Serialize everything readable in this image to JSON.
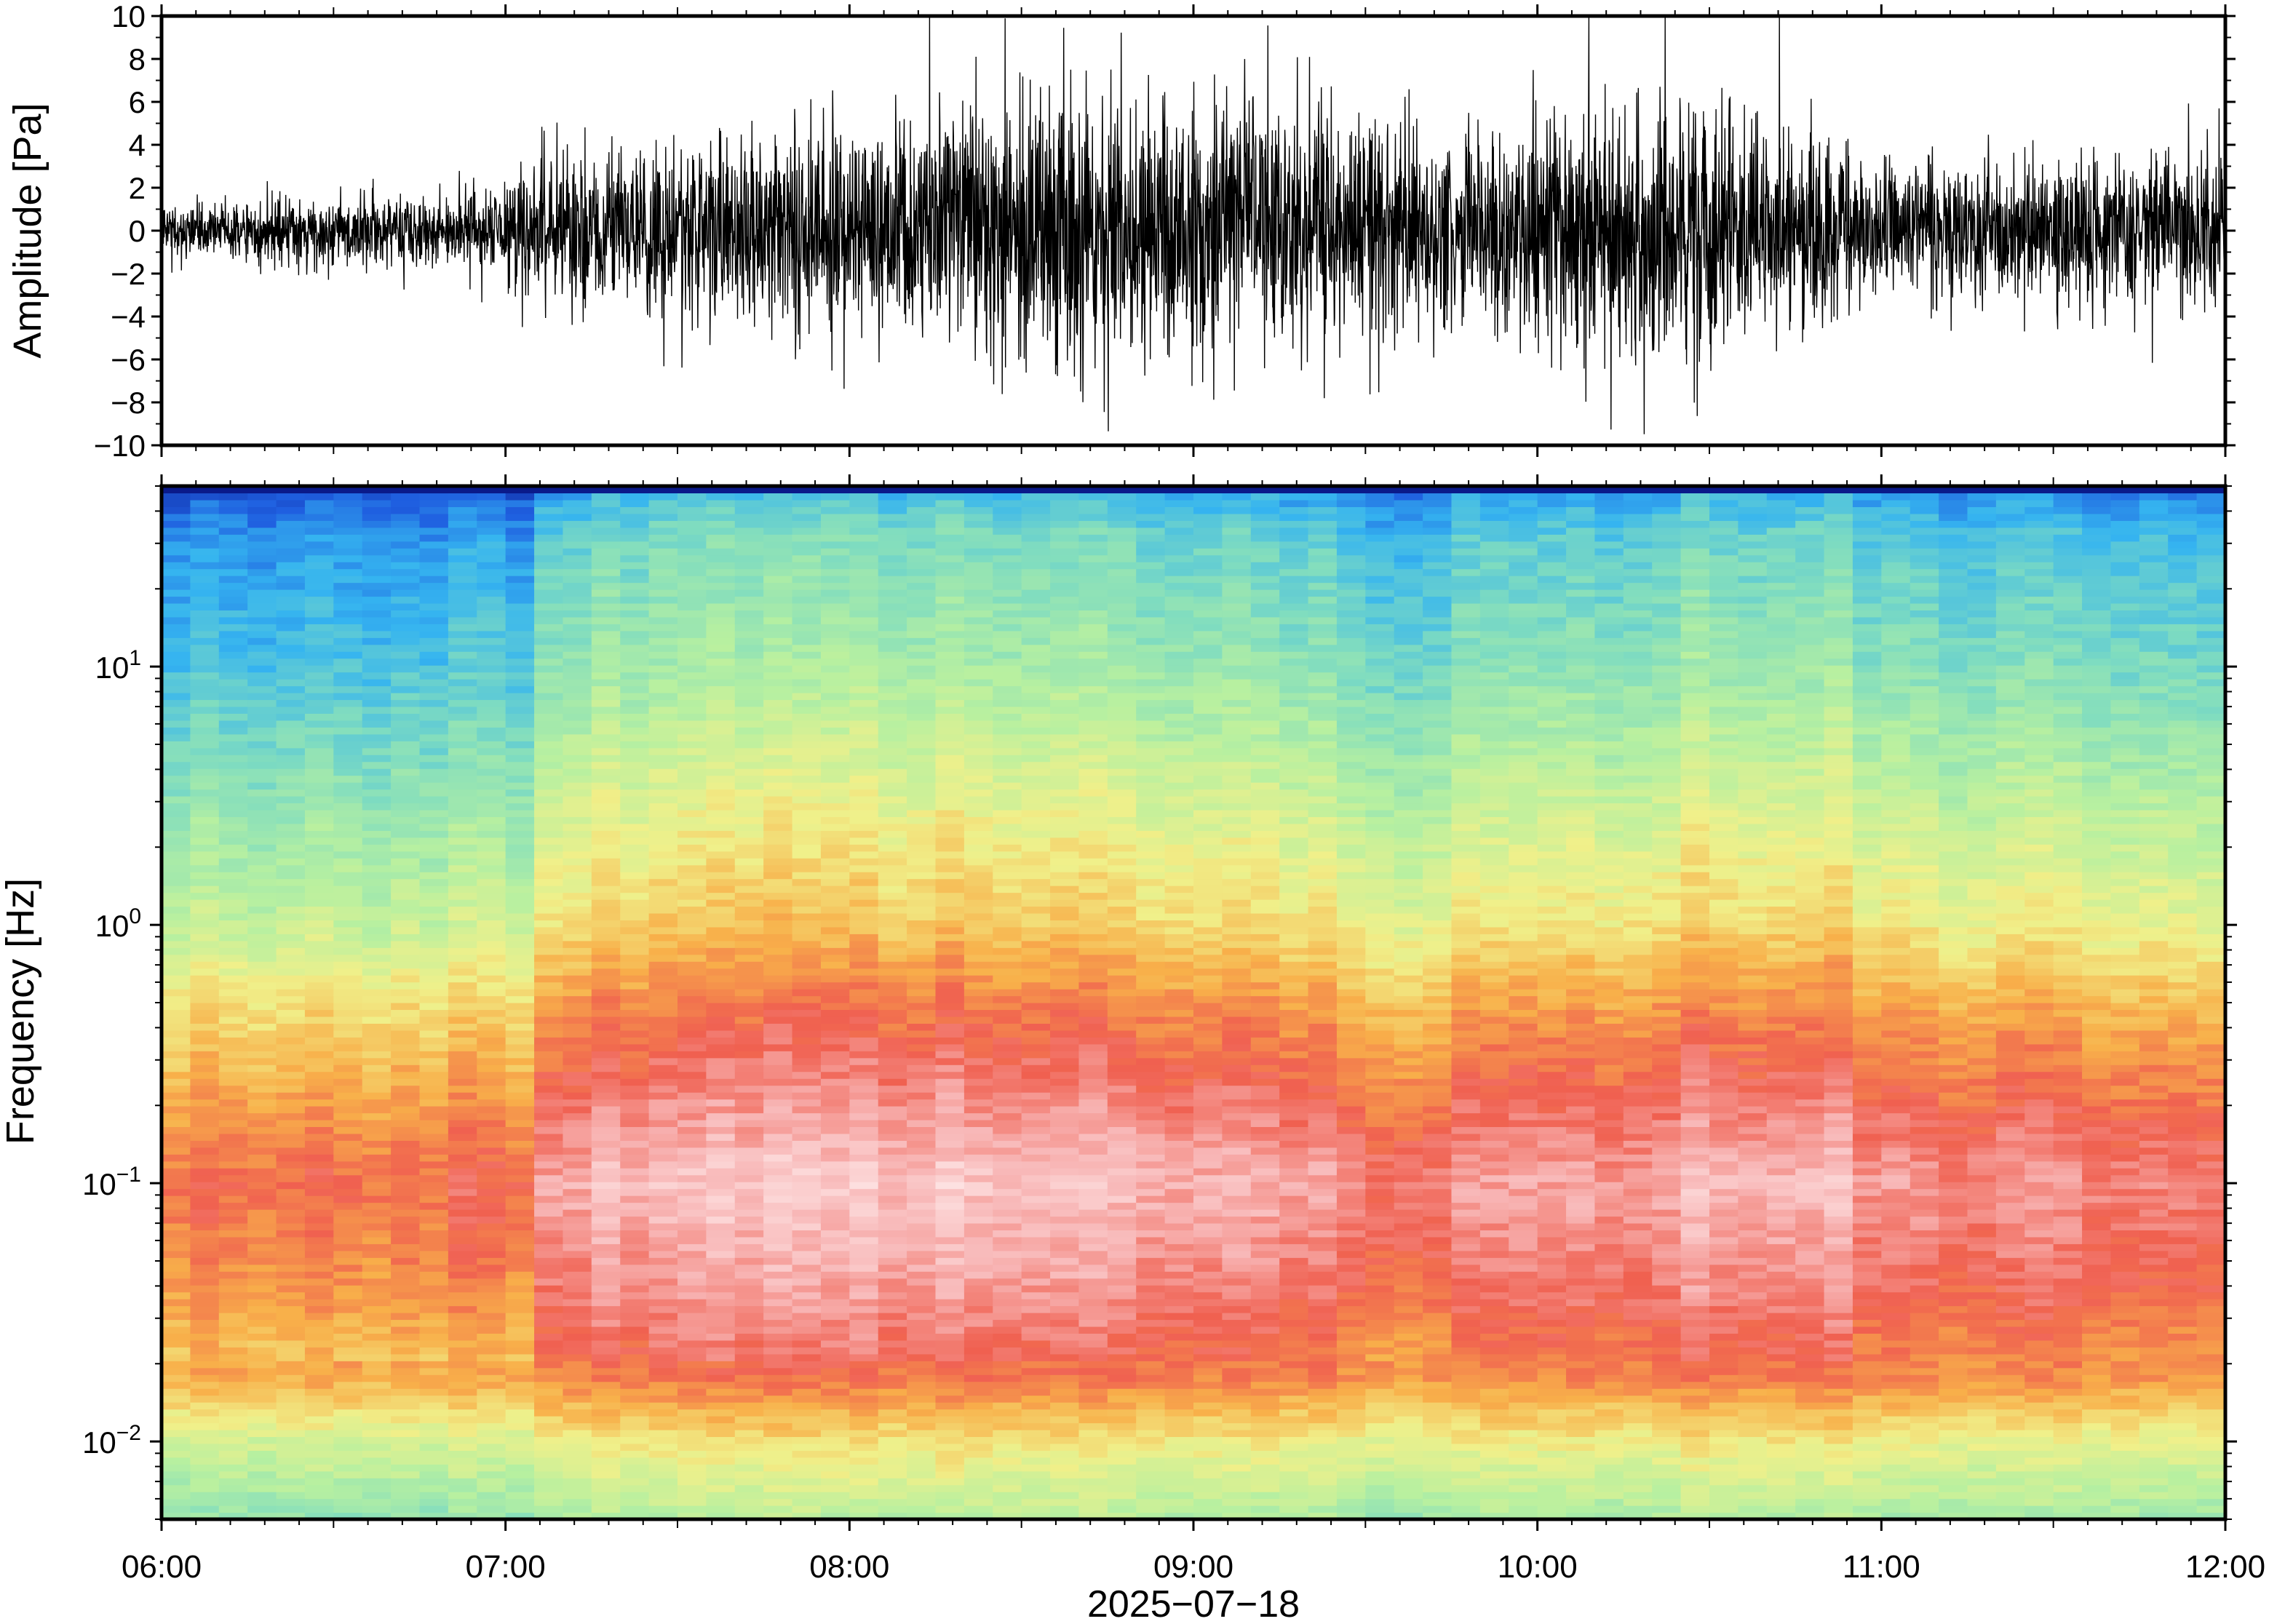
{
  "chart_data": [
    {
      "type": "line",
      "panel": "waveform",
      "ylabel": "Amplitude [Pa]",
      "ylim": [
        -10,
        10
      ],
      "y_ticks": [
        10,
        8,
        6,
        4,
        2,
        0,
        -2,
        -4,
        -6,
        -8,
        -10
      ],
      "y_tick_labels": [
        "10",
        "8",
        "6",
        "4",
        "2",
        "0",
        "−2",
        "−4",
        "−6",
        "−8",
        "−10"
      ],
      "x_range": [
        "06:00",
        "12:00"
      ],
      "series": [
        {
          "color": "#000000",
          "envelope_hours": [
            6.0,
            6.5,
            7.0,
            7.05,
            7.5,
            8.0,
            8.3,
            8.5,
            9.0,
            9.25,
            9.5,
            9.75,
            9.8,
            10.0,
            10.3,
            10.5,
            10.8,
            11.0,
            11.5,
            12.0
          ],
          "envelope_amplitude_pa": [
            0.8,
            1.3,
            1.6,
            2.8,
            3.2,
            3.8,
            4.8,
            5.2,
            5.2,
            5.0,
            4.4,
            3.8,
            3.8,
            4.0,
            5.0,
            4.8,
            3.6,
            2.6,
            2.6,
            2.9
          ]
        }
      ]
    },
    {
      "type": "heatmap",
      "panel": "spectrogram",
      "ylabel": "Frequency [Hz]",
      "yscale": "log",
      "ylim": [
        0.005,
        50
      ],
      "y_ticks": [
        0.01,
        0.1,
        1,
        10
      ],
      "y_tick_labels": [
        {
          "base": "10",
          "exp": "−2"
        },
        {
          "base": "10",
          "exp": "−1"
        },
        {
          "base": "10",
          "exp": "0"
        },
        {
          "base": "10",
          "exp": "1"
        }
      ],
      "xlabel": "2025−07−18",
      "x_ticks": [
        "06:00",
        "07:00",
        "08:00",
        "09:00",
        "10:00",
        "11:00",
        "12:00"
      ],
      "colormap": [
        "#0a1a8a",
        "#1f5fe0",
        "#35b4f0",
        "#7fdcc0",
        "#b8f0a0",
        "#f0f08a",
        "#f8b04a",
        "#f06050",
        "#f8b8b8",
        "#fff0f0"
      ],
      "segment_breaks_hours": [
        7.05,
        9.53,
        9.78,
        10.3,
        10.88
      ]
    }
  ]
}
